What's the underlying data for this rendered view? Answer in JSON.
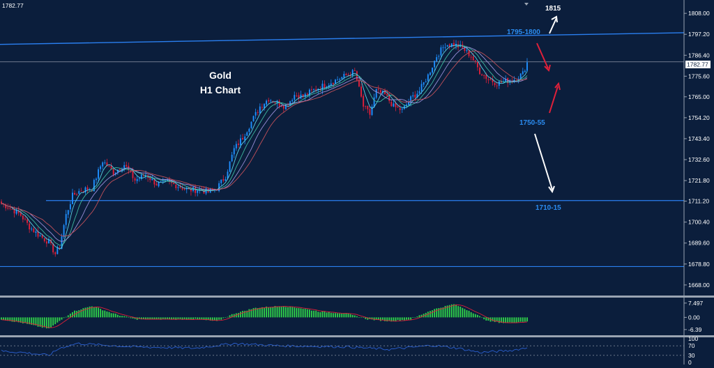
{
  "corner_price": "1782.77",
  "current_price_tag": "1782.77",
  "chart_title_line1": "Gold",
  "chart_title_line2": "H1 Chart",
  "colors": {
    "background": "#0b1e3c",
    "bull_candle": "#1e8fff",
    "bear_candle": "#e0203a",
    "level_line": "#2a7ff0",
    "annotation_blue": "#2b8cf0",
    "hist_bar": "#2fcf4a",
    "signal_line": "#e0203a",
    "rsi_line": "#2a5fd0",
    "separator": "#9aa4b2"
  },
  "annotations": [
    {
      "text": "1815",
      "color": "#ffffff"
    },
    {
      "text": "1795-1800",
      "color": "#2b8cf0"
    },
    {
      "text": "1750-55",
      "color": "#2b8cf0"
    },
    {
      "text": "1710-15",
      "color": "#2b8cf0"
    }
  ],
  "chart_data": [
    {
      "type": "candlestick",
      "title": "Gold H1 Chart",
      "y_ticks": [
        "1808.00",
        "1797.20",
        "1786.40",
        "1775.60",
        "1765.00",
        "1754.20",
        "1743.40",
        "1732.60",
        "1721.80",
        "1711.20",
        "1700.40",
        "1689.60",
        "1678.80",
        "1668.00"
      ],
      "ylim": [
        1664.0,
        1812.0
      ],
      "horizontal_levels": [
        1783.0,
        1711.5,
        1677.5
      ],
      "trendline": {
        "start": 1792.0,
        "end": 1798.0
      },
      "close_path": [
        [
          0,
          1710
        ],
        [
          5,
          1707
        ],
        [
          9,
          1704
        ],
        [
          13,
          1698
        ],
        [
          17,
          1694
        ],
        [
          22,
          1690
        ],
        [
          25,
          1684
        ],
        [
          27,
          1688
        ],
        [
          30,
          1704
        ],
        [
          33,
          1714
        ],
        [
          37,
          1717
        ],
        [
          42,
          1718
        ],
        [
          47,
          1732
        ],
        [
          52,
          1726
        ],
        [
          57,
          1730
        ],
        [
          62,
          1722
        ],
        [
          67,
          1725
        ],
        [
          72,
          1720
        ],
        [
          77,
          1721
        ],
        [
          82,
          1719
        ],
        [
          87,
          1717
        ],
        [
          92,
          1717
        ],
        [
          96,
          1716
        ],
        [
          100,
          1718
        ],
        [
          104,
          1724
        ],
        [
          108,
          1738
        ],
        [
          112,
          1744
        ],
        [
          116,
          1752
        ],
        [
          120,
          1760
        ],
        [
          124,
          1764
        ],
        [
          128,
          1762
        ],
        [
          132,
          1760
        ],
        [
          136,
          1766
        ],
        [
          140,
          1765
        ],
        [
          144,
          1768
        ],
        [
          148,
          1770
        ],
        [
          152,
          1772
        ],
        [
          156,
          1774
        ],
        [
          160,
          1776
        ],
        [
          164,
          1778
        ],
        [
          168,
          1760
        ],
        [
          171,
          1756
        ],
        [
          174,
          1768
        ],
        [
          178,
          1766
        ],
        [
          182,
          1760
        ],
        [
          186,
          1758
        ],
        [
          190,
          1764
        ],
        [
          194,
          1768
        ],
        [
          198,
          1776
        ],
        [
          202,
          1786
        ],
        [
          206,
          1792
        ],
        [
          210,
          1792
        ],
        [
          214,
          1790
        ],
        [
          218,
          1786
        ],
        [
          222,
          1778
        ],
        [
          226,
          1774
        ],
        [
          230,
          1772
        ],
        [
          234,
          1773
        ],
        [
          238,
          1774
        ],
        [
          242,
          1777
        ],
        [
          244,
          1782.77
        ]
      ],
      "candle_count": 245
    },
    {
      "type": "bar",
      "title": "",
      "y_ticks": [
        "7.497",
        "0.00",
        "-6.39"
      ],
      "ylim": [
        -9.0,
        10.0
      ],
      "series_shape": [
        [
          0,
          -1
        ],
        [
          10,
          -3
        ],
        [
          22,
          -6
        ],
        [
          27,
          -2
        ],
        [
          33,
          3
        ],
        [
          42,
          6
        ],
        [
          52,
          2
        ],
        [
          62,
          -1
        ],
        [
          75,
          -1
        ],
        [
          90,
          -1
        ],
        [
          100,
          -2
        ],
        [
          108,
          2
        ],
        [
          118,
          5
        ],
        [
          130,
          6
        ],
        [
          138,
          5
        ],
        [
          148,
          3
        ],
        [
          160,
          2
        ],
        [
          170,
          -1
        ],
        [
          180,
          -2
        ],
        [
          190,
          -1
        ],
        [
          200,
          4
        ],
        [
          210,
          7
        ],
        [
          218,
          3
        ],
        [
          226,
          -2
        ],
        [
          234,
          -3
        ],
        [
          244,
          -2
        ]
      ]
    },
    {
      "type": "line",
      "title": "",
      "y_ticks": [
        "100",
        "70",
        "30",
        "0"
      ],
      "ylim": [
        0,
        100
      ],
      "values_shape": [
        [
          0,
          48
        ],
        [
          10,
          42
        ],
        [
          22,
          30
        ],
        [
          27,
          60
        ],
        [
          35,
          80
        ],
        [
          60,
          66
        ],
        [
          90,
          60
        ],
        [
          108,
          80
        ],
        [
          130,
          70
        ],
        [
          160,
          66
        ],
        [
          180,
          55
        ],
        [
          200,
          72
        ],
        [
          212,
          60
        ],
        [
          222,
          42
        ],
        [
          236,
          50
        ],
        [
          244,
          62
        ]
      ]
    }
  ]
}
